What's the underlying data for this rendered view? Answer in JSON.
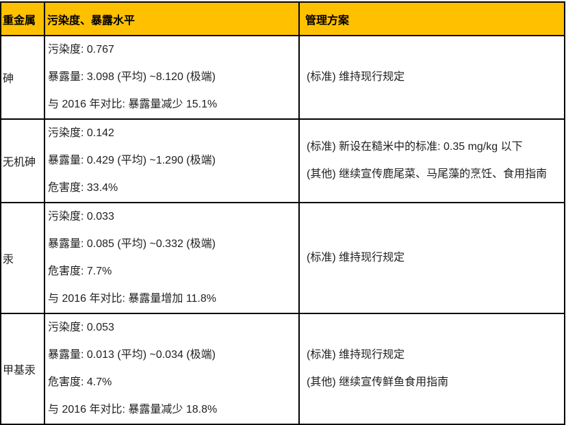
{
  "colors": {
    "header_bg": "#FFC000",
    "header_text": "#000000",
    "body_text": "#1F1F1F",
    "border": "#000000"
  },
  "table": {
    "columns": [
      "重金属",
      "污染度、暴露水平",
      "管理方案"
    ],
    "rows": [
      {
        "metal": "砷",
        "levels": [
          "污染度: 0.767",
          "暴露量: 3.098 (平均) ~8.120 (极端)",
          "与 2016 年对比: 暴露量减少 15.1%"
        ],
        "plans": [
          "(标准) 维持现行规定"
        ]
      },
      {
        "metal": "无机砷",
        "levels": [
          "污染度: 0.142",
          "暴露量: 0.429 (平均) ~1.290 (极端)",
          "危害度: 33.4%"
        ],
        "plans": [
          "(标准) 新设在糙米中的标准: 0.35 mg/kg 以下",
          "(其他) 继续宣传鹿尾菜、马尾藻的烹饪、食用指南"
        ]
      },
      {
        "metal": "汞",
        "levels": [
          "污染度: 0.033",
          "暴露量: 0.085 (平均) ~0.332 (极端)",
          "危害度: 7.7%",
          "与 2016 年对比: 暴露量增加 11.8%"
        ],
        "plans": [
          "(标准) 维持现行规定"
        ]
      },
      {
        "metal": "甲基汞",
        "levels": [
          "污染度: 0.053",
          "暴露量: 0.013 (平均) ~0.034 (极端)",
          "危害度: 4.7%",
          "与 2016 年对比: 暴露量减少 18.8%"
        ],
        "plans": [
          "(标准) 维持现行规定",
          "(其他) 继续宣传鲜鱼食用指南"
        ]
      }
    ]
  }
}
